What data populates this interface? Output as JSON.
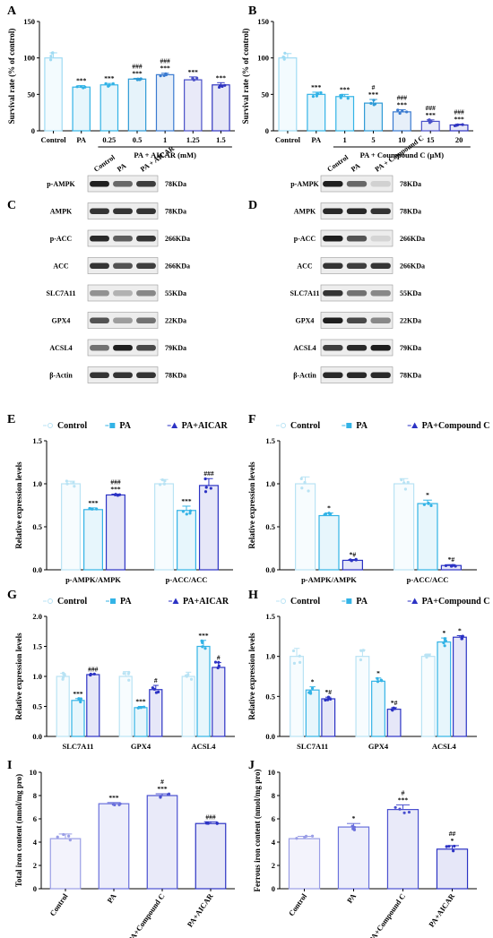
{
  "chart_data": [
    {
      "panel": "A",
      "type": "bar",
      "categories": [
        "Control",
        "PA",
        "0.25",
        "0.5",
        "1",
        "1.25",
        "1.5"
      ],
      "values": [
        100,
        60,
        63,
        71,
        77,
        70,
        63
      ],
      "errors": [
        7,
        2,
        2,
        1,
        2,
        4,
        3
      ],
      "colors": [
        "#9fdbf3",
        "#33b3e6",
        "#33b3e6",
        "#2d9ad6",
        "#3a7ad0",
        "#4a50c8",
        "#3034c0"
      ],
      "annotations": [
        [],
        [
          "***"
        ],
        [
          "***"
        ],
        [
          "###",
          "***"
        ],
        [
          "###",
          "***"
        ],
        [
          "***"
        ],
        [
          "***"
        ]
      ],
      "ylabel": "Survival rate (% of control)",
      "yticks": [
        0,
        50,
        100,
        150
      ],
      "ylim": [
        0,
        150
      ],
      "group_label": "PA + AICAR (mM)",
      "group_start": 2,
      "group_end": 6
    },
    {
      "panel": "B",
      "type": "bar",
      "categories": [
        "Control",
        "PA",
        "1",
        "5",
        "10",
        "15",
        "20"
      ],
      "values": [
        100,
        50,
        47,
        38,
        26,
        13,
        8
      ],
      "errors": [
        6,
        3,
        3,
        5,
        3,
        2,
        1
      ],
      "colors": [
        "#9fdbf3",
        "#33b3e6",
        "#33b3e6",
        "#2d9ad6",
        "#3a7ad0",
        "#4a50c8",
        "#3034c0"
      ],
      "annotations": [
        [],
        [
          "***"
        ],
        [
          "***"
        ],
        [
          "#",
          "***"
        ],
        [
          "###",
          "***"
        ],
        [
          "###",
          "***"
        ],
        [
          "###",
          "***"
        ]
      ],
      "ylabel": "Survival rate (% of control)",
      "yticks": [
        0,
        50,
        100,
        150
      ],
      "ylim": [
        0,
        150
      ],
      "group_label": "PA + Coumpound C (μM)",
      "group_start": 2,
      "group_end": 6
    },
    {
      "panel": "E",
      "type": "bar",
      "groups": [
        "p-AMPK/AMPK",
        "p-ACC/ACC"
      ],
      "series": [
        {
          "name": "Control",
          "values": [
            1.0,
            1.0
          ],
          "errors": [
            0.03,
            0.05
          ],
          "annotations": [
            [],
            []
          ]
        },
        {
          "name": "PA",
          "values": [
            0.7,
            0.69
          ],
          "errors": [
            0.02,
            0.05
          ],
          "annotations": [
            [
              "***"
            ],
            [
              "***"
            ]
          ]
        },
        {
          "name": "PA+AICAR",
          "values": [
            0.87,
            0.98
          ],
          "errors": [
            0.01,
            0.08
          ],
          "annotations": [
            [
              "###",
              "***"
            ],
            [
              "###"
            ]
          ]
        }
      ],
      "colors": [
        "#b9e3f4",
        "#33b3e6",
        "#2c33c4"
      ],
      "ylabel": "Relative expression levels",
      "yticks": [
        0,
        0.5,
        1.0,
        1.5
      ],
      "ytick_labels": [
        "0.0",
        "0.5",
        "1.0",
        "1.5"
      ],
      "ylim": [
        0,
        1.5
      ]
    },
    {
      "panel": "F",
      "type": "bar",
      "groups": [
        "p-AMPK/AMPK",
        "p-ACC/ACC"
      ],
      "series": [
        {
          "name": "Control",
          "values": [
            1.0,
            1.0
          ],
          "errors": [
            0.08,
            0.06
          ],
          "annotations": [
            [],
            []
          ]
        },
        {
          "name": "PA",
          "values": [
            0.63,
            0.77
          ],
          "errors": [
            0.03,
            0.04
          ],
          "annotations": [
            [
              "*"
            ],
            [
              "*"
            ]
          ]
        },
        {
          "name": "PA+Compound C",
          "values": [
            0.11,
            0.05
          ],
          "errors": [
            0.01,
            0.01
          ],
          "annotations": [
            [
              "*#"
            ],
            [
              "*#"
            ]
          ]
        }
      ],
      "colors": [
        "#b9e3f4",
        "#33b3e6",
        "#2c33c4"
      ],
      "ylabel": "Relative expression levels",
      "yticks": [
        0,
        0.5,
        1.0,
        1.5
      ],
      "ytick_labels": [
        "0.0",
        "0.5",
        "1.0",
        "1.5"
      ],
      "ylim": [
        0,
        1.5
      ]
    },
    {
      "panel": "G",
      "type": "bar",
      "groups": [
        "SLC7A11",
        "GPX4",
        "ACSL4"
      ],
      "series": [
        {
          "name": "Control",
          "values": [
            1.0,
            1.0,
            1.0
          ],
          "errors": [
            0.05,
            0.08,
            0.07
          ],
          "annotations": [
            [],
            [],
            []
          ]
        },
        {
          "name": "PA",
          "values": [
            0.6,
            0.48,
            1.5
          ],
          "errors": [
            0.03,
            0.02,
            0.1
          ],
          "annotations": [
            [
              "***"
            ],
            [
              "***"
            ],
            [
              "***"
            ]
          ]
        },
        {
          "name": "PA+AICAR",
          "values": [
            1.03,
            0.78,
            1.15
          ],
          "errors": [
            0.01,
            0.07,
            0.08
          ],
          "annotations": [
            [
              "###"
            ],
            [
              "#"
            ],
            [
              "#"
            ]
          ]
        }
      ],
      "colors": [
        "#b9e3f4",
        "#33b3e6",
        "#2c33c4"
      ],
      "ylabel": "Relative expression levels",
      "yticks": [
        0,
        0.5,
        1.0,
        1.5,
        2.0
      ],
      "ytick_labels": [
        "0.0",
        "0.5",
        "1.0",
        "1.5",
        "2.0"
      ],
      "ylim": [
        0,
        2.0
      ]
    },
    {
      "panel": "H",
      "type": "bar",
      "groups": [
        "SLC7A11",
        "GPX4",
        "ACSL4"
      ],
      "series": [
        {
          "name": "Control",
          "values": [
            1.0,
            1.0,
            1.0
          ],
          "errors": [
            0.1,
            0.08,
            0.03
          ],
          "annotations": [
            [],
            [],
            []
          ]
        },
        {
          "name": "PA",
          "values": [
            0.58,
            0.69,
            1.18
          ],
          "errors": [
            0.04,
            0.04,
            0.05
          ],
          "annotations": [
            [
              "*"
            ],
            [
              "*"
            ],
            [
              "*"
            ]
          ]
        },
        {
          "name": "PA+Compound C",
          "values": [
            0.47,
            0.34,
            1.24
          ],
          "errors": [
            0.02,
            0.02,
            0.02
          ],
          "annotations": [
            [
              "*#"
            ],
            [
              "*#"
            ],
            [
              "*"
            ]
          ]
        }
      ],
      "colors": [
        "#b9e3f4",
        "#33b3e6",
        "#2c33c4"
      ],
      "ylabel": "Relative expression levels",
      "yticks": [
        0,
        0.5,
        1.0,
        1.5
      ],
      "ytick_labels": [
        "0.0",
        "0.5",
        "1.0",
        "1.5"
      ],
      "ylim": [
        0,
        1.5
      ]
    },
    {
      "panel": "I",
      "type": "bar",
      "categories": [
        "Control",
        "PA",
        "PA+Compound C",
        "PA+AICAR"
      ],
      "values": [
        4.3,
        7.3,
        8.0,
        5.6
      ],
      "errors": [
        0.4,
        0.1,
        0.15,
        0.15
      ],
      "colors": [
        "#9a9ee6",
        "#6a70dc",
        "#4a50d0",
        "#2c33c4"
      ],
      "annotations": [
        [],
        [
          "***"
        ],
        [
          "#",
          "***"
        ],
        [
          "###"
        ]
      ],
      "ylabel": "Total iron content (nmol/mg pro)",
      "yticks": [
        0,
        2,
        4,
        6,
        8,
        10
      ],
      "ylim": [
        0,
        10
      ]
    },
    {
      "panel": "J",
      "type": "bar",
      "categories": [
        "Control",
        "PA",
        "PA+Compound C",
        "PA+AICAR"
      ],
      "values": [
        4.3,
        5.3,
        6.8,
        3.4
      ],
      "errors": [
        0.2,
        0.3,
        0.4,
        0.3
      ],
      "colors": [
        "#9a9ee6",
        "#6a70dc",
        "#4a50d0",
        "#2c33c4"
      ],
      "annotations": [
        [],
        [
          "*"
        ],
        [
          "#",
          "***"
        ],
        [
          "##",
          "*"
        ]
      ],
      "ylabel": "Ferrous iron content (nmol/mg pro)",
      "yticks": [
        0,
        2,
        4,
        6,
        8,
        10
      ],
      "ylim": [
        0,
        10
      ]
    }
  ],
  "blots": [
    {
      "panel": "C",
      "lanes": [
        "Control",
        "PA",
        "PA + AICAR"
      ],
      "rows": [
        {
          "protein": "p-AMPK",
          "size": "78KDa",
          "intensity": [
            0.95,
            0.6,
            0.8
          ]
        },
        {
          "protein": "AMPK",
          "size": "78KDa",
          "intensity": [
            0.85,
            0.85,
            0.85
          ]
        },
        {
          "protein": "p-ACC",
          "size": "266KDa",
          "intensity": [
            0.9,
            0.65,
            0.85
          ]
        },
        {
          "protein": "ACC",
          "size": "266KDa",
          "intensity": [
            0.85,
            0.7,
            0.8
          ]
        },
        {
          "protein": "SLC7A11",
          "size": "55KDa",
          "intensity": [
            0.4,
            0.25,
            0.45
          ]
        },
        {
          "protein": "GPX4",
          "size": "22KDa",
          "intensity": [
            0.7,
            0.35,
            0.55
          ]
        },
        {
          "protein": "ACSL4",
          "size": "79KDa",
          "intensity": [
            0.55,
            0.95,
            0.75
          ]
        },
        {
          "protein": "β-Actin",
          "size": "78KDa",
          "intensity": [
            0.85,
            0.85,
            0.85
          ]
        }
      ]
    },
    {
      "panel": "D",
      "lanes": [
        "Control",
        "PA",
        "PA + Compound C"
      ],
      "rows": [
        {
          "protein": "p-AMPK",
          "size": "78KDa",
          "intensity": [
            0.95,
            0.6,
            0.1
          ]
        },
        {
          "protein": "AMPK",
          "size": "78KDa",
          "intensity": [
            0.9,
            0.9,
            0.85
          ]
        },
        {
          "protein": "p-ACC",
          "size": "266KDa",
          "intensity": [
            0.95,
            0.7,
            0.08
          ]
        },
        {
          "protein": "ACC",
          "size": "266KDa",
          "intensity": [
            0.85,
            0.8,
            0.85
          ]
        },
        {
          "protein": "SLC7A11",
          "size": "55KDa",
          "intensity": [
            0.85,
            0.55,
            0.45
          ]
        },
        {
          "protein": "GPX4",
          "size": "22KDa",
          "intensity": [
            0.95,
            0.75,
            0.45
          ]
        },
        {
          "protein": "ACSL4",
          "size": "79KDa",
          "intensity": [
            0.8,
            0.9,
            0.95
          ]
        },
        {
          "protein": "β-Actin",
          "size": "78KDa",
          "intensity": [
            0.9,
            0.9,
            0.9
          ]
        }
      ]
    }
  ]
}
